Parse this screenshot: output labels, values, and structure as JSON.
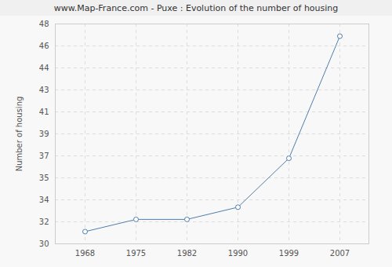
{
  "chart_data": {
    "type": "line",
    "title": "www.Map-France.com - Puxe : Evolution of the number of housing",
    "y_label": "Number of housing",
    "categories": [
      "1968",
      "1975",
      "1982",
      "1990",
      "1999",
      "2007"
    ],
    "values": [
      31,
      32,
      32,
      33,
      37,
      47
    ],
    "color": "#4f7eab",
    "marker": "circle",
    "ylim": [
      30,
      48
    ],
    "yticks": [
      30,
      {
        "value": 31.8,
        "label": "32"
      },
      {
        "value": 33.6,
        "label": "34"
      },
      {
        "value": 35.4,
        "label": "35"
      },
      {
        "value": 37.2,
        "label": "37"
      },
      39,
      {
        "value": 40.8,
        "label": "41"
      },
      {
        "value": 42.6,
        "label": "43"
      },
      {
        "value": 44.4,
        "label": "44"
      },
      {
        "value": 46.2,
        "label": "46"
      },
      48
    ],
    "grid": true
  }
}
